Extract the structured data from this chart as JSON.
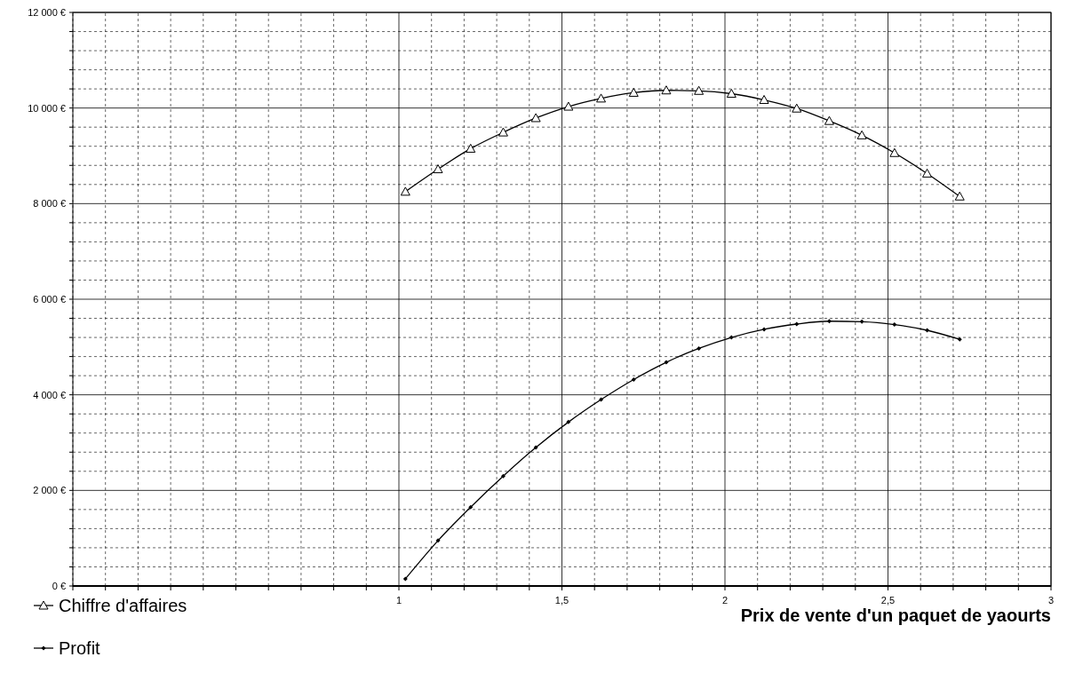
{
  "chart_data": {
    "type": "line",
    "xlabel": "Prix de vente d'un paquet de yaourts",
    "x": [
      1.02,
      1.12,
      1.22,
      1.32,
      1.42,
      1.52,
      1.62,
      1.72,
      1.82,
      1.92,
      2.02,
      2.12,
      2.22,
      2.32,
      2.42,
      2.52,
      2.62,
      2.72
    ],
    "series": [
      {
        "name": "Chiffre d'affaires",
        "color": "#000000",
        "marker": "triangle",
        "values": [
          8250,
          8720,
          9150,
          9490,
          9790,
          10030,
          10200,
          10320,
          10370,
          10360,
          10300,
          10170,
          9990,
          9730,
          9430,
          9060,
          8630,
          8150
        ]
      },
      {
        "name": "Profit",
        "color": "#000000",
        "marker": "diamond",
        "values": [
          150,
          950,
          1650,
          2300,
          2900,
          3430,
          3900,
          4320,
          4680,
          4970,
          5200,
          5370,
          5480,
          5540,
          5530,
          5470,
          5350,
          5160
        ]
      }
    ],
    "xlim": [
      0,
      3
    ],
    "xticks": [
      {
        "value": 0,
        "label": null
      },
      {
        "value": 0.1,
        "label": null
      },
      {
        "value": 0.2,
        "label": null
      },
      {
        "value": 0.3,
        "label": null
      },
      {
        "value": 0.4,
        "label": null
      },
      {
        "value": 0.5,
        "label": null
      },
      {
        "value": 0.6,
        "label": null
      },
      {
        "value": 0.7,
        "label": null
      },
      {
        "value": 0.8,
        "label": null
      },
      {
        "value": 0.9,
        "label": null
      },
      1,
      {
        "value": 1.1,
        "label": null
      },
      {
        "value": 1.2,
        "label": null
      },
      {
        "value": 1.3,
        "label": null
      },
      {
        "value": 1.4,
        "label": null
      },
      {
        "value": 1.5,
        "label": "1,5"
      },
      {
        "value": 1.6,
        "label": null
      },
      {
        "value": 1.7,
        "label": null
      },
      {
        "value": 1.8,
        "label": null
      },
      {
        "value": 1.9,
        "label": null
      },
      2,
      {
        "value": 2.1,
        "label": null
      },
      {
        "value": 2.2,
        "label": null
      },
      {
        "value": 2.3,
        "label": null
      },
      {
        "value": 2.4,
        "label": null
      },
      {
        "value": 2.5,
        "label": "2,5"
      },
      {
        "value": 2.6,
        "label": null
      },
      {
        "value": 2.7,
        "label": null
      },
      {
        "value": 2.8,
        "label": null
      },
      {
        "value": 2.9,
        "label": null
      },
      3
    ],
    "ylim": [
      0,
      12000
    ],
    "yticks": [
      {
        "value": 0,
        "label": "0 €"
      },
      {
        "value": 400,
        "label": null
      },
      {
        "value": 800,
        "label": null
      },
      {
        "value": 1200,
        "label": null
      },
      {
        "value": 1600,
        "label": null
      },
      {
        "value": 2000,
        "label": "2 000 €"
      },
      {
        "value": 2400,
        "label": null
      },
      {
        "value": 2800,
        "label": null
      },
      {
        "value": 3200,
        "label": null
      },
      {
        "value": 3600,
        "label": null
      },
      {
        "value": 4000,
        "label": "4 000 €"
      },
      {
        "value": 4400,
        "label": null
      },
      {
        "value": 4800,
        "label": null
      },
      {
        "value": 5200,
        "label": null
      },
      {
        "value": 5600,
        "label": null
      },
      {
        "value": 6000,
        "label": "6 000 €"
      },
      {
        "value": 6400,
        "label": null
      },
      {
        "value": 6800,
        "label": null
      },
      {
        "value": 7200,
        "label": null
      },
      {
        "value": 7600,
        "label": null
      },
      {
        "value": 8000,
        "label": "8 000 €"
      },
      {
        "value": 8400,
        "label": null
      },
      {
        "value": 8800,
        "label": null
      },
      {
        "value": 9200,
        "label": null
      },
      {
        "value": 9600,
        "label": null
      },
      {
        "value": 10000,
        "label": "10 000 €"
      },
      {
        "value": 10400,
        "label": null
      },
      {
        "value": 10800,
        "label": null
      },
      {
        "value": 11200,
        "label": null
      },
      {
        "value": 11600,
        "label": null
      },
      {
        "value": 12000,
        "label": "12 000 €"
      }
    ],
    "grid": true,
    "legend": "bottom left",
    "line_style": "solid"
  }
}
